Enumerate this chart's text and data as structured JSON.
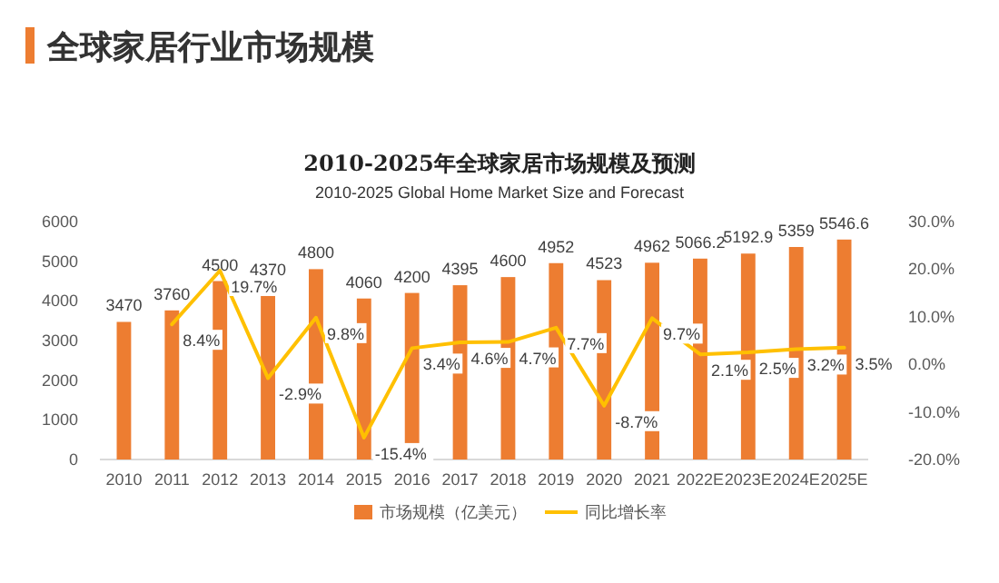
{
  "chart_data": {
    "type": "bar",
    "title": "2010-2025年全球家居市场规模及预测",
    "subtitle": "2010-2025 Global Home Market Size and Forecast",
    "annotations": [
      "全球家居行业市场规模"
    ],
    "categories": [
      "2010",
      "2011",
      "2012",
      "2013",
      "2014",
      "2015",
      "2016",
      "2017",
      "2018",
      "2019",
      "2020",
      "2021",
      "2022E",
      "2023E",
      "2024E",
      "2025E"
    ],
    "series": [
      {
        "name": "市场规模（亿美元）",
        "color": "#ed7d31",
        "values": [
          3470,
          3760,
          4500,
          4370,
          4800,
          4060,
          4200,
          4395,
          4600,
          4952,
          4523,
          4962,
          5066.2,
          5192.9,
          5359,
          5546.6
        ]
      },
      {
        "name": "同比增长率",
        "type": "line",
        "axis": "y2",
        "color": "#ffc000",
        "values": [
          null,
          8.4,
          19.7,
          -2.9,
          9.8,
          -15.4,
          3.4,
          4.6,
          4.7,
          7.7,
          -8.7,
          9.7,
          2.1,
          2.5,
          3.2,
          3.5
        ],
        "value_labels": [
          null,
          "8.4%",
          "19.7%",
          "-2.9%",
          "9.8%",
          "-15.4%",
          "3.4%",
          "4.6%",
          "4.7%",
          "7.7%",
          "-8.7%",
          "9.7%",
          "2.1%",
          "2.5%",
          "3.2%",
          "3.5%"
        ]
      }
    ],
    "data_labels": true,
    "ylim": [
      0,
      6000
    ],
    "yticks": [
      0,
      1000,
      2000,
      3000,
      4000,
      5000,
      6000
    ],
    "y2lim": [
      -20,
      30
    ],
    "y2ticks": [
      {
        "value": -20,
        "label": "-20.0%"
      },
      {
        "value": -10,
        "label": "-10.0%"
      },
      {
        "value": 0,
        "label": "0.0%"
      },
      {
        "value": 10,
        "label": "10.0%"
      },
      {
        "value": 20,
        "label": "20.0%"
      },
      {
        "value": 30,
        "label": "30.0%"
      }
    ],
    "grid": false,
    "legend": "bottom",
    "marker": "none",
    "line_style": "solid"
  }
}
